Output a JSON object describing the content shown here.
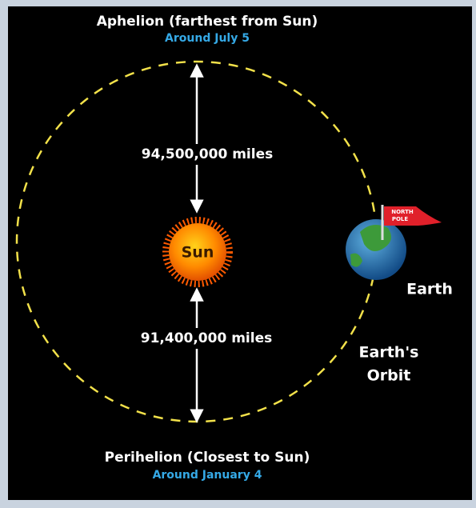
{
  "aphelion": {
    "title": "Aphelion (farthest from Sun)",
    "date": "Around July 5",
    "distance": "94,500,000 miles"
  },
  "perihelion": {
    "title": "Perihelion (Closest to Sun)",
    "date": "Around January 4",
    "distance": "91,400,000 miles"
  },
  "sun": {
    "label": "Sun"
  },
  "earth": {
    "label": "Earth",
    "flag": [
      "NORTH",
      "POLE"
    ]
  },
  "orbit": {
    "label": [
      "Earth's",
      "Orbit"
    ]
  }
}
